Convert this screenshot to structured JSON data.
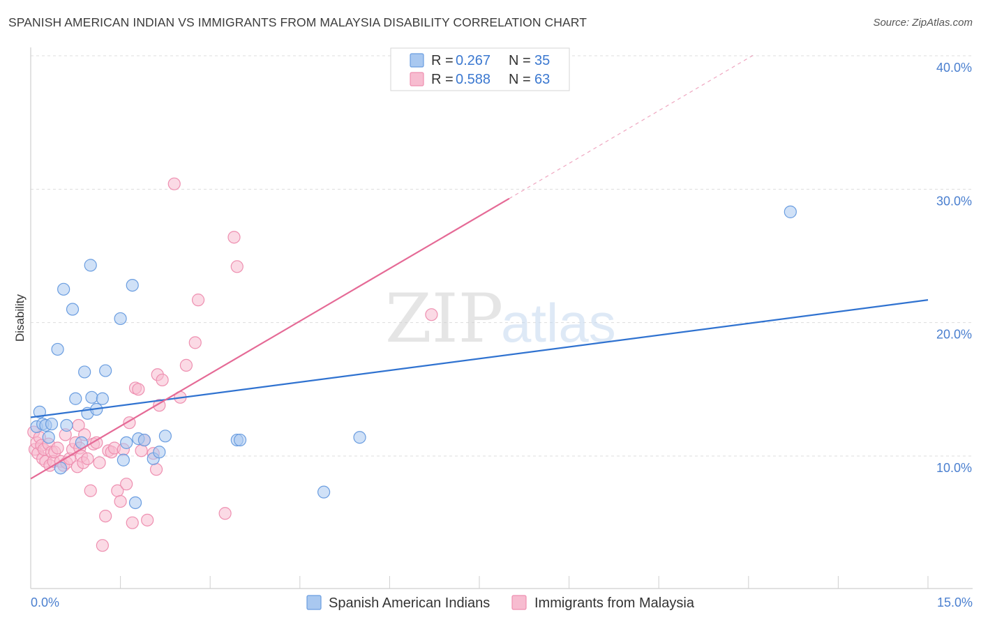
{
  "header": {
    "title": "SPANISH AMERICAN INDIAN VS IMMIGRANTS FROM MALAYSIA DISABILITY CORRELATION CHART",
    "source": "Source: ZipAtlas.com"
  },
  "watermark": {
    "zip": "ZIP",
    "atlas": "atlas"
  },
  "legend_top": [
    {
      "r_label": "R =",
      "r_value": "0.267",
      "n_label": "N =",
      "n_value": "35"
    },
    {
      "r_label": "R =",
      "r_value": "0.588",
      "n_label": "N =",
      "n_value": "63"
    }
  ],
  "colors": {
    "blue_fill": "#a9c8f0",
    "blue_stroke": "#6a9de0",
    "blue_line": "#2f72d0",
    "pink_fill": "#f7bcd0",
    "pink_stroke": "#ee8fb0",
    "pink_line": "#e56a96",
    "tick_text": "#4a7fcf",
    "grid": "#dddddd"
  },
  "chart_data": {
    "type": "scatter",
    "title": "SPANISH AMERICAN INDIAN VS IMMIGRANTS FROM MALAYSIA DISABILITY CORRELATION CHART",
    "xlabel": "",
    "ylabel": "Disability",
    "xlim": [
      0,
      15
    ],
    "ylim": [
      0,
      41.5
    ],
    "x_tick_labels": [
      "0.0%",
      "15.0%"
    ],
    "y_ticks": [
      10,
      20,
      30,
      40
    ],
    "y_tick_labels": [
      "10.0%",
      "20.0%",
      "30.0%",
      "40.0%"
    ],
    "grid": true,
    "legend_position": "bottom",
    "series": [
      {
        "name": "Spanish American Indians",
        "color": "#a9c8f0",
        "r": 0.267,
        "n": 35,
        "trend": {
          "x0": 0,
          "y0": 12.9,
          "x1": 15,
          "y1": 21.7
        },
        "points": [
          [
            0.1,
            12.2
          ],
          [
            0.15,
            13.3
          ],
          [
            0.2,
            12.4
          ],
          [
            0.25,
            12.3
          ],
          [
            0.3,
            11.4
          ],
          [
            0.35,
            12.4
          ],
          [
            0.45,
            18.0
          ],
          [
            0.5,
            9.1
          ],
          [
            0.55,
            22.5
          ],
          [
            0.6,
            12.3
          ],
          [
            0.7,
            21.0
          ],
          [
            0.75,
            14.3
          ],
          [
            0.85,
            11.0
          ],
          [
            0.9,
            16.3
          ],
          [
            0.95,
            13.2
          ],
          [
            1.0,
            24.3
          ],
          [
            1.02,
            14.4
          ],
          [
            1.1,
            13.5
          ],
          [
            1.2,
            14.3
          ],
          [
            1.25,
            16.4
          ],
          [
            1.5,
            20.3
          ],
          [
            1.55,
            9.7
          ],
          [
            1.6,
            11.0
          ],
          [
            1.7,
            22.8
          ],
          [
            1.75,
            6.5
          ],
          [
            1.8,
            11.3
          ],
          [
            1.9,
            11.2
          ],
          [
            2.05,
            9.8
          ],
          [
            2.15,
            10.3
          ],
          [
            2.25,
            11.5
          ],
          [
            3.45,
            11.2
          ],
          [
            3.5,
            11.2
          ],
          [
            4.9,
            7.3
          ],
          [
            5.5,
            11.4
          ],
          [
            12.7,
            28.3
          ]
        ]
      },
      {
        "name": "Immigrants from Malaysia",
        "color": "#f7bcd0",
        "r": 0.588,
        "n": 63,
        "trend": {
          "x0": 0,
          "y0": 8.3,
          "x1": 8.0,
          "y1": 29.3
        },
        "trend_extension": {
          "x0": 8.0,
          "y0": 29.3,
          "x1": 12.1,
          "y1": 40.1
        },
        "points": [
          [
            0.05,
            11.8
          ],
          [
            0.07,
            10.5
          ],
          [
            0.1,
            11.0
          ],
          [
            0.12,
            10.2
          ],
          [
            0.15,
            11.4
          ],
          [
            0.18,
            10.8
          ],
          [
            0.2,
            9.8
          ],
          [
            0.22,
            10.5
          ],
          [
            0.25,
            9.6
          ],
          [
            0.3,
            10.9
          ],
          [
            0.32,
            9.3
          ],
          [
            0.35,
            10.3
          ],
          [
            0.38,
            9.6
          ],
          [
            0.4,
            10.3
          ],
          [
            0.45,
            10.6
          ],
          [
            0.5,
            9.6
          ],
          [
            0.55,
            9.3
          ],
          [
            0.58,
            11.6
          ],
          [
            0.6,
            9.5
          ],
          [
            0.65,
            9.8
          ],
          [
            0.7,
            10.5
          ],
          [
            0.75,
            11.0
          ],
          [
            0.78,
            9.2
          ],
          [
            0.8,
            12.3
          ],
          [
            0.82,
            10.6
          ],
          [
            0.85,
            10.0
          ],
          [
            0.88,
            9.5
          ],
          [
            0.9,
            11.6
          ],
          [
            0.95,
            9.8
          ],
          [
            1.0,
            7.4
          ],
          [
            1.05,
            10.9
          ],
          [
            1.1,
            11.0
          ],
          [
            1.15,
            9.5
          ],
          [
            1.2,
            3.3
          ],
          [
            1.25,
            5.5
          ],
          [
            1.3,
            10.4
          ],
          [
            1.35,
            10.3
          ],
          [
            1.4,
            10.6
          ],
          [
            1.45,
            7.4
          ],
          [
            1.5,
            6.6
          ],
          [
            1.55,
            10.5
          ],
          [
            1.6,
            7.9
          ],
          [
            1.65,
            12.5
          ],
          [
            1.7,
            5.0
          ],
          [
            1.75,
            15.1
          ],
          [
            1.8,
            15.0
          ],
          [
            1.85,
            10.4
          ],
          [
            1.9,
            11.2
          ],
          [
            1.95,
            5.2
          ],
          [
            2.05,
            10.2
          ],
          [
            2.1,
            9.0
          ],
          [
            2.12,
            16.1
          ],
          [
            2.2,
            15.7
          ],
          [
            2.15,
            13.8
          ],
          [
            2.4,
            30.4
          ],
          [
            2.5,
            14.4
          ],
          [
            2.6,
            16.8
          ],
          [
            2.75,
            18.5
          ],
          [
            2.8,
            21.7
          ],
          [
            3.25,
            5.7
          ],
          [
            3.4,
            26.4
          ],
          [
            3.45,
            24.2
          ],
          [
            6.7,
            20.6
          ]
        ]
      }
    ]
  },
  "legend_bottom": {
    "items": [
      {
        "label": "Spanish American Indians"
      },
      {
        "label": "Immigrants from Malaysia"
      }
    ]
  }
}
